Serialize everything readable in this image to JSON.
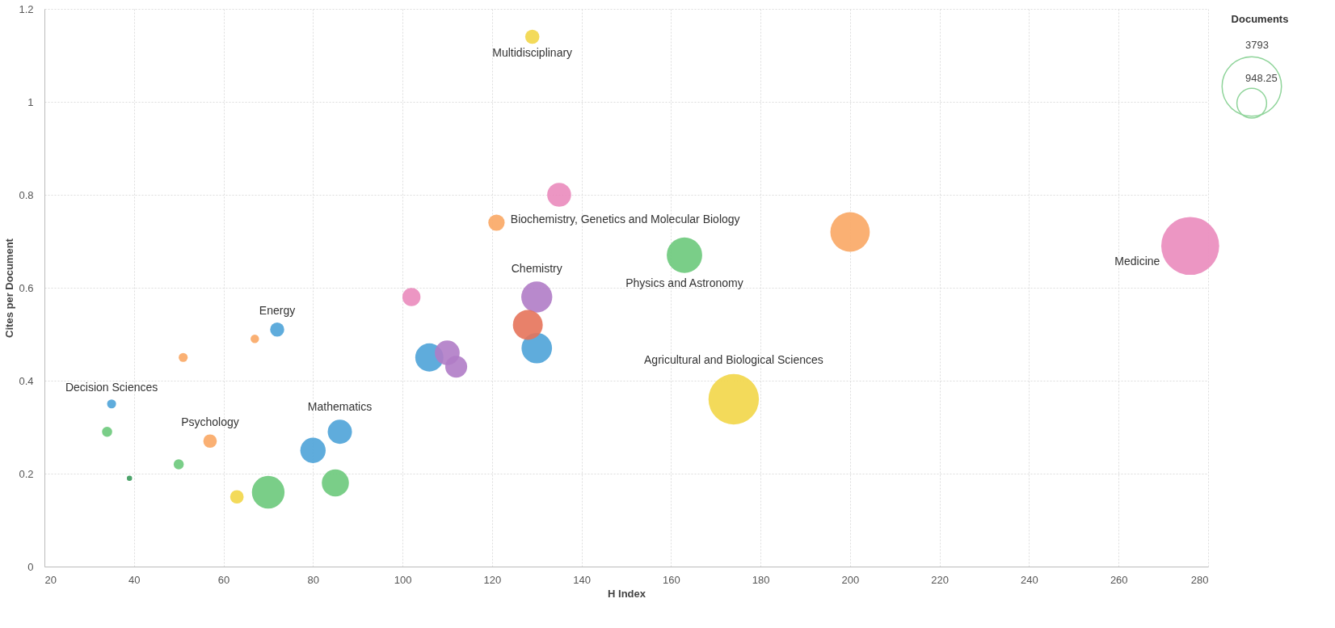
{
  "chart_data": {
    "type": "bubble",
    "xlabel": "H Index",
    "ylabel": "Cites per Document",
    "legend_title": "Documents",
    "x": [
      129,
      135,
      121,
      163,
      200,
      276,
      102,
      130,
      128,
      130,
      106,
      110,
      112,
      174,
      72,
      67,
      51,
      35,
      34,
      57,
      50,
      39,
      63,
      70,
      85,
      80,
      86
    ],
    "values": [
      1.14,
      0.8,
      0.74,
      0.67,
      0.72,
      0.69,
      0.58,
      0.58,
      0.52,
      0.47,
      0.45,
      0.46,
      0.43,
      0.36,
      0.51,
      0.49,
      0.45,
      0.35,
      0.29,
      0.27,
      0.22,
      0.19,
      0.15,
      0.16,
      0.18,
      0.25,
      0.29
    ],
    "sizes": [
      218,
      616,
      288,
      1351,
      1674,
      3613,
      352,
      1033,
      960,
      1000,
      855,
      661,
      518,
      2734,
      214,
      76,
      87,
      87,
      110,
      197,
      110,
      30,
      197,
      1147,
      789,
      692,
      631
    ],
    "colors": [
      "#f2d648",
      "#ea8bbc",
      "#f9a764",
      "#6cc97b",
      "#f9a764",
      "#ea8bbc",
      "#ea8bbc",
      "#b07cc6",
      "#e5735a",
      "#4ea3d8",
      "#4ea3d8",
      "#b07cc6",
      "#b07cc6",
      "#f2d648",
      "#4ea3d8",
      "#f9a764",
      "#f9a764",
      "#4ea3d8",
      "#6cc97b",
      "#f9a764",
      "#6cc97b",
      "#3a9a5b",
      "#f2d648",
      "#6cc97b",
      "#6cc97b",
      "#4ea3d8",
      "#4ea3d8"
    ],
    "size_legend": [
      3793,
      948.25
    ],
    "annotations": [
      {
        "text": "Multidisciplinary",
        "x": 129,
        "y": 1.14
      },
      {
        "text": "Biochemistry, Genetics and Molecular Biology",
        "x": 121,
        "y": 0.74
      },
      {
        "text": "Chemistry",
        "x": 130,
        "y": 0.58
      },
      {
        "text": "Physics and Astronomy",
        "x": 163,
        "y": 0.67
      },
      {
        "text": "Medicine",
        "x": 276,
        "y": 0.69
      },
      {
        "text": "Energy",
        "x": 72,
        "y": 0.51
      },
      {
        "text": "Agricultural and Biological Sciences",
        "x": 174,
        "y": 0.36
      },
      {
        "text": "Decision Sciences",
        "x": 35,
        "y": 0.35
      },
      {
        "text": "Mathematics",
        "x": 86,
        "y": 0.29
      },
      {
        "text": "Psychology",
        "x": 57,
        "y": 0.27
      }
    ],
    "xlim": [
      20,
      280
    ],
    "xticks": [
      20,
      40,
      60,
      80,
      100,
      120,
      140,
      160,
      180,
      200,
      220,
      240,
      260,
      280
    ],
    "ylim": [
      0,
      1.2
    ],
    "yticks": [
      0,
      0.2,
      0.4,
      0.6,
      0.8,
      1,
      1.2
    ],
    "grid": true
  }
}
